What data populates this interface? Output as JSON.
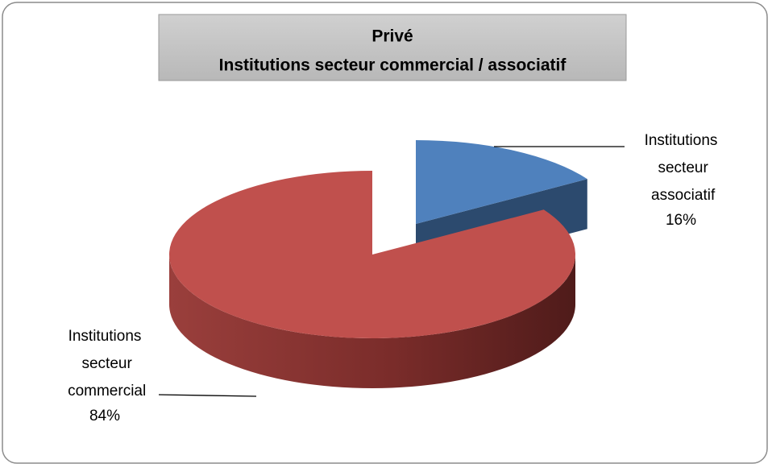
{
  "chart_data": {
    "type": "pie3d",
    "title": "Privé",
    "subtitle": "Institutions secteur commercial / associatif",
    "categories": [
      "Institutions secteur associatif",
      "Institutions secteur commercial"
    ],
    "values": [
      16,
      84
    ],
    "value_labels": [
      "16%",
      "84%"
    ],
    "colors": [
      "#4f81bd",
      "#c0504d"
    ],
    "side_colors": [
      "#2c4a6e",
      "#7d2f2d"
    ]
  }
}
